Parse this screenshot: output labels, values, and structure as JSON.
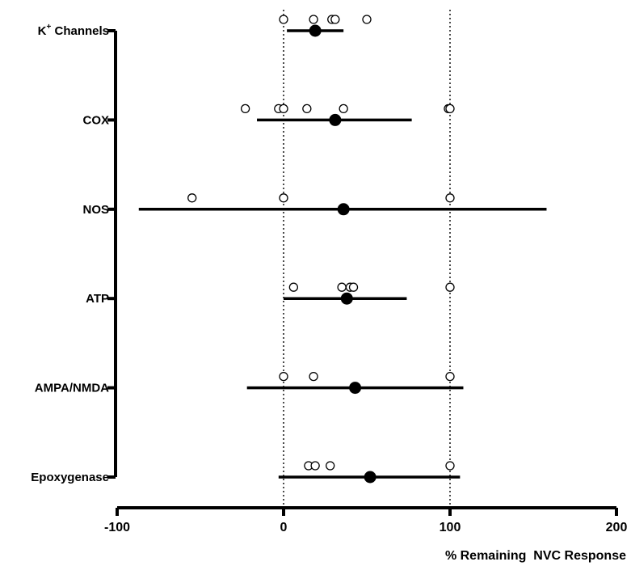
{
  "chart_data": {
    "type": "scatter",
    "title": "",
    "xlabel": "% Remaining  NVC Response",
    "ylabel": "",
    "xlim": [
      -100,
      200
    ],
    "xticks": [
      -100,
      0,
      100,
      200
    ],
    "reference_lines": [
      0,
      100
    ],
    "categories": [
      {
        "label_main": "K",
        "label_sup": "+",
        "label_rest": " Channels",
        "mean": 19,
        "ci": [
          2,
          36
        ],
        "points": [
          0,
          18,
          29,
          31,
          50
        ]
      },
      {
        "label_main": "COX",
        "mean": 31,
        "ci": [
          -16,
          77
        ],
        "points": [
          -23,
          -3,
          0,
          14,
          36,
          99,
          100
        ]
      },
      {
        "label_main": "NOS",
        "mean": 36,
        "ci": [
          -87,
          158
        ],
        "points": [
          -55,
          0,
          100
        ]
      },
      {
        "label_main": "ATP",
        "mean": 38,
        "ci": [
          0,
          74
        ],
        "points": [
          6,
          35,
          40,
          42,
          100
        ]
      },
      {
        "label_main": "AMPA/NMDA",
        "mean": 43,
        "ci": [
          -22,
          108
        ],
        "points": [
          0,
          18,
          100
        ]
      },
      {
        "label_main": "Epoxygenase",
        "mean": 52,
        "ci": [
          -3,
          106
        ],
        "points": [
          15,
          19,
          28,
          100
        ]
      }
    ],
    "legend": "none",
    "grid": false
  }
}
